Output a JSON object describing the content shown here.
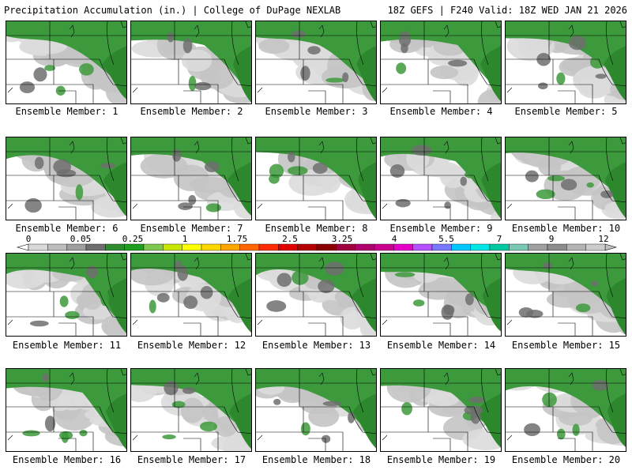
{
  "header": {
    "title_left": "Precipitation Accumulation (in.) | College of DuPage NEXLAB",
    "title_right": "18Z GEFS | F240 Valid: 18Z WED JAN 21 2026"
  },
  "colorbar": {
    "labels": [
      "0",
      "0.05",
      "0.25",
      "1",
      "1.75",
      "2.5",
      "3.25",
      "4",
      "5.5",
      "7",
      "9",
      "12"
    ],
    "colors": [
      "#d9d9d9",
      "#bdbdbd",
      "#9e9e9e",
      "#6e6e6e",
      "#2e8b2e",
      "#1f9e1f",
      "#7ec850",
      "#c8e600",
      "#ffff00",
      "#ffd700",
      "#ffa500",
      "#ff6600",
      "#ff2a00",
      "#e00000",
      "#b40000",
      "#8b0000",
      "#9e0040",
      "#b0006e",
      "#c8008c",
      "#e600c8",
      "#b450ff",
      "#7878ff",
      "#00c8ff",
      "#00e6e6",
      "#00c8a0",
      "#78c8b4",
      "#a0a0a0",
      "#8c8c8c",
      "#b4b4b4",
      "#cccccc"
    ]
  },
  "panels": [
    {
      "label": "Ensemble Member: 1"
    },
    {
      "label": "Ensemble Member: 2"
    },
    {
      "label": "Ensemble Member: 3"
    },
    {
      "label": "Ensemble Member: 4"
    },
    {
      "label": "Ensemble Member: 5"
    },
    {
      "label": "Ensemble Member: 6"
    },
    {
      "label": "Ensemble Member: 7"
    },
    {
      "label": "Ensemble Member: 8"
    },
    {
      "label": "Ensemble Member: 9"
    },
    {
      "label": "Ensemble Member: 10"
    },
    {
      "label": "Ensemble Member: 11"
    },
    {
      "label": "Ensemble Member: 12"
    },
    {
      "label": "Ensemble Member: 13"
    },
    {
      "label": "Ensemble Member: 14"
    },
    {
      "label": "Ensemble Member: 15"
    },
    {
      "label": "Ensemble Member: 16"
    },
    {
      "label": "Ensemble Member: 17"
    },
    {
      "label": "Ensemble Member: 18"
    },
    {
      "label": "Ensemble Member: 19"
    },
    {
      "label": "Ensemble Member: 20"
    }
  ]
}
